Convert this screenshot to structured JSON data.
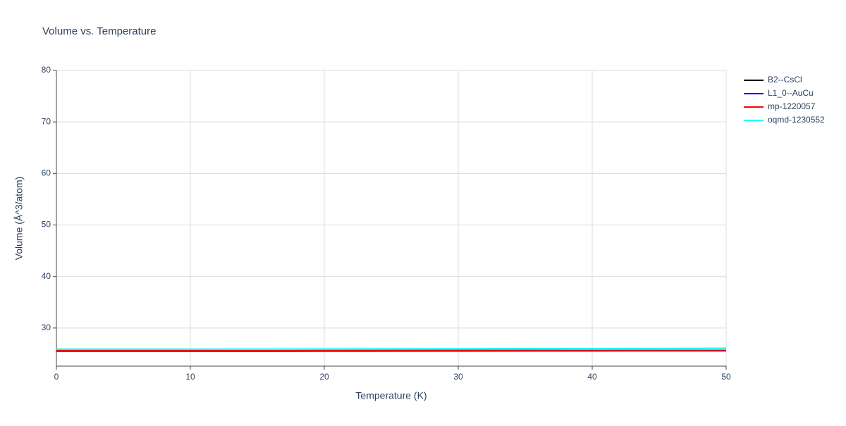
{
  "chart_data": {
    "type": "line",
    "title": "Volume vs. Temperature",
    "x_label": "Temperature (K)",
    "y_label": "Volume (Å^3/atom)",
    "x": [
      0,
      10,
      20,
      30,
      40,
      50
    ],
    "series": [
      {
        "name": "B2--CsCl",
        "color": "#000000",
        "values": [
          25.6,
          25.6,
          25.62,
          25.64,
          25.66,
          25.68
        ]
      },
      {
        "name": "L1_0--AuCu",
        "color": "#0000ff",
        "values": [
          25.5,
          25.5,
          25.52,
          25.54,
          25.56,
          25.58
        ]
      },
      {
        "name": "mp-1220057",
        "color": "#ff0000",
        "values": [
          25.6,
          25.6,
          25.62,
          25.64,
          25.66,
          25.68
        ]
      },
      {
        "name": "oqmd-1230552",
        "color": "#00ffff",
        "values": [
          25.9,
          25.9,
          25.93,
          25.97,
          26.02,
          26.08
        ]
      }
    ],
    "xlim": [
      0,
      50
    ],
    "xticks": [
      0,
      10,
      20,
      30,
      40,
      50
    ],
    "ylim": [
      22.6,
      80
    ],
    "yticks": [
      30,
      40,
      50,
      60,
      70,
      80
    ],
    "grid": true,
    "legend": "right"
  }
}
